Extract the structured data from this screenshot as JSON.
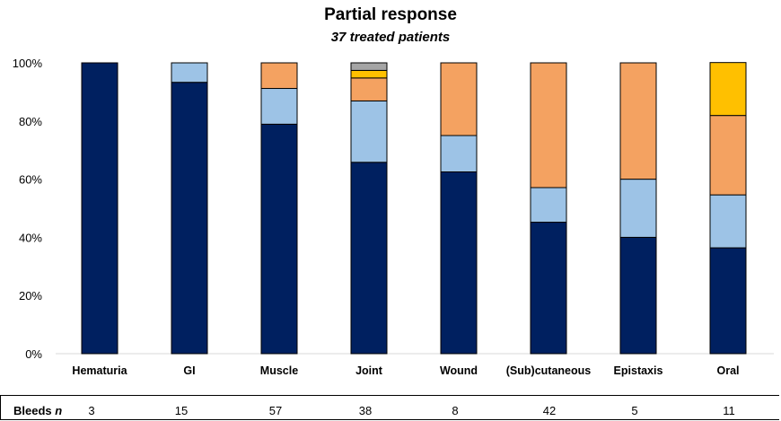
{
  "chart_data": {
    "type": "bar",
    "stacked": true,
    "title": "Partial response",
    "subtitle": "37 treated patients",
    "categories": [
      "Hematuria",
      "GI",
      "Muscle",
      "Joint",
      "Wound",
      "(Sub)cutaneous",
      "Epistaxis",
      "Oral"
    ],
    "ylim": [
      0,
      100
    ],
    "yticks": [
      "0%",
      "20%",
      "40%",
      "60%",
      "80%",
      "100%"
    ],
    "series": [
      {
        "color": "#002060",
        "values": [
          100,
          93.3,
          78.9,
          65.8,
          62.5,
          45.2,
          40,
          36.4
        ]
      },
      {
        "color": "#9DC3E6",
        "values": [
          0,
          6.7,
          12.3,
          21.1,
          12.5,
          11.9,
          20,
          18.2
        ]
      },
      {
        "color": "#F4A261",
        "values": [
          0,
          0,
          8.8,
          7.9,
          25,
          42.9,
          40,
          27.3
        ]
      },
      {
        "color": "#FFC000",
        "values": [
          0,
          0,
          0,
          2.6,
          0,
          0,
          0,
          18.2
        ]
      },
      {
        "color": "#A5A5A5",
        "values": [
          0,
          0,
          0,
          2.6,
          0,
          0,
          0,
          0
        ]
      }
    ],
    "bleeds": {
      "label": "Bleeds",
      "label_n": "n",
      "counts": [
        "3",
        "15",
        "57",
        "38",
        "8",
        "42",
        "5",
        "11"
      ]
    },
    "grid": false,
    "legend": "none"
  }
}
